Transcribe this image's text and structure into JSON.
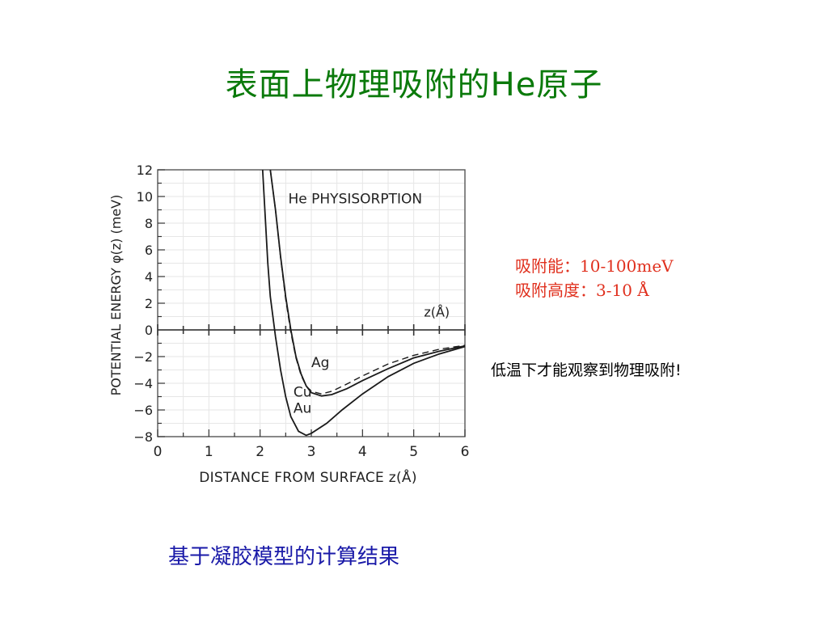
{
  "slide": {
    "title": "表面上物理吸附的He原子",
    "note_energy": "吸附能：10-100meV",
    "note_height": "吸附高度：3-10 Å",
    "note_lowtemp": "低温下才能观察到物理吸附!",
    "caption": "基于凝胶模型的计算结果"
  },
  "colors": {
    "title": "#0b7a0b",
    "note_red": "#e0301e",
    "caption": "#1a1aa8"
  },
  "chart_data": {
    "type": "line",
    "title": "He PHYSISORPTION",
    "xlabel": "DISTANCE FROM SURFACE z(Å)",
    "ylabel": "POTENTIAL ENERGY φ(z) (meV)",
    "zero_axis_label": "z(Å)",
    "xlim": [
      0,
      6
    ],
    "ylim": [
      -8,
      12
    ],
    "xticks": [
      0,
      1,
      2,
      3,
      4,
      5,
      6
    ],
    "yticks": [
      12,
      10,
      8,
      6,
      4,
      2,
      0,
      -2,
      -4,
      -6,
      -8
    ],
    "series": [
      {
        "name": "Ag",
        "style": "solid",
        "points": [
          [
            2.2,
            12
          ],
          [
            2.3,
            9
          ],
          [
            2.4,
            5.5
          ],
          [
            2.5,
            2.5
          ],
          [
            2.6,
            0
          ],
          [
            2.7,
            -2
          ],
          [
            2.8,
            -3.3
          ],
          [
            2.9,
            -4.2
          ],
          [
            3.0,
            -4.7
          ],
          [
            3.2,
            -4.95
          ],
          [
            3.4,
            -4.85
          ],
          [
            3.7,
            -4.4
          ],
          [
            4.0,
            -3.8
          ],
          [
            4.5,
            -2.9
          ],
          [
            5.0,
            -2.1
          ],
          [
            5.5,
            -1.6
          ],
          [
            6.0,
            -1.2
          ]
        ]
      },
      {
        "name": "Cu",
        "style": "dashed",
        "points": [
          [
            2.2,
            12
          ],
          [
            2.3,
            9
          ],
          [
            2.4,
            5.4
          ],
          [
            2.5,
            2.3
          ],
          [
            2.6,
            -0.2
          ],
          [
            2.7,
            -2.1
          ],
          [
            2.8,
            -3.4
          ],
          [
            2.9,
            -4.2
          ],
          [
            3.0,
            -4.6
          ],
          [
            3.2,
            -4.8
          ],
          [
            3.4,
            -4.6
          ],
          [
            3.7,
            -4.05
          ],
          [
            4.0,
            -3.45
          ],
          [
            4.5,
            -2.55
          ],
          [
            5.0,
            -1.9
          ],
          [
            5.5,
            -1.45
          ],
          [
            6.0,
            -1.15
          ]
        ]
      },
      {
        "name": "Au",
        "style": "solid",
        "points": [
          [
            2.05,
            12
          ],
          [
            2.1,
            8.5
          ],
          [
            2.15,
            5
          ],
          [
            2.2,
            2.5
          ],
          [
            2.3,
            -0.5
          ],
          [
            2.4,
            -3
          ],
          [
            2.5,
            -5
          ],
          [
            2.6,
            -6.5
          ],
          [
            2.75,
            -7.6
          ],
          [
            2.9,
            -7.9
          ],
          [
            3.0,
            -7.75
          ],
          [
            3.3,
            -7.0
          ],
          [
            3.6,
            -6.0
          ],
          [
            4.0,
            -4.8
          ],
          [
            4.5,
            -3.5
          ],
          [
            5.0,
            -2.5
          ],
          [
            5.5,
            -1.8
          ],
          [
            6.0,
            -1.25
          ]
        ]
      }
    ],
    "labels": [
      {
        "text": "Ag",
        "x": 3.0,
        "y": -2.8
      },
      {
        "text": "Cu",
        "x": 2.65,
        "y": -5.0
      },
      {
        "text": "Au",
        "x": 2.65,
        "y": -6.2
      }
    ]
  }
}
